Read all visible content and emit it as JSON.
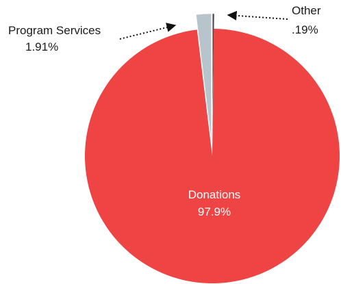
{
  "chart_data": {
    "type": "pie",
    "title": "",
    "legend": "none",
    "slices": [
      {
        "name": "Donations",
        "value": 97.9,
        "label": "97.9%",
        "color": "#ef4444"
      },
      {
        "name": "Program Services",
        "value": 1.91,
        "label": "1.91%",
        "color": "#b8c4cc"
      },
      {
        "name": "Other",
        "value": 0.19,
        "label": ".19%",
        "color": "#4a4a4a"
      }
    ]
  }
}
